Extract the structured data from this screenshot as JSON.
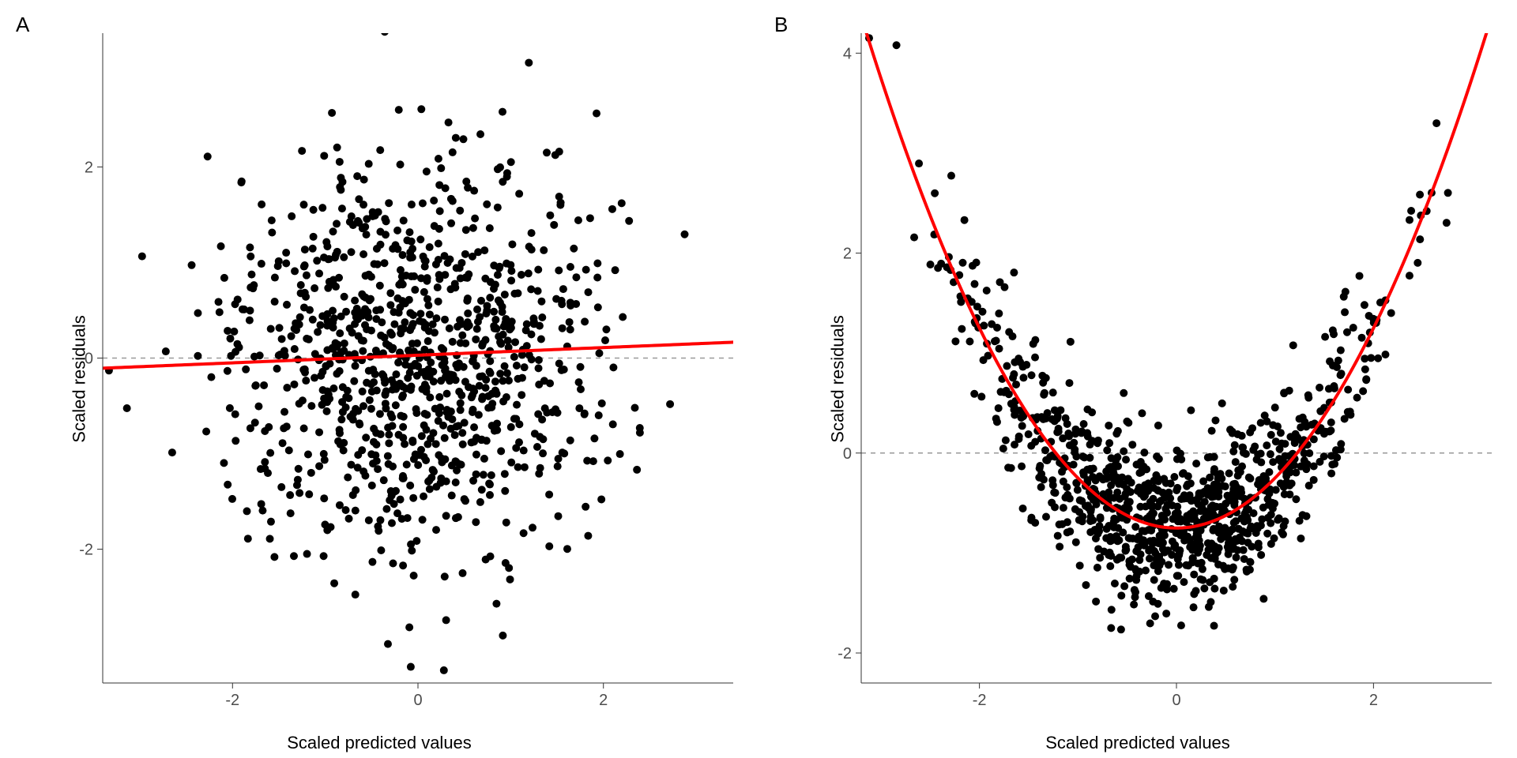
{
  "figure": {
    "background_color": "#ffffff",
    "font_family": "Arial",
    "label_fontsize": 22,
    "tick_fontsize": 20,
    "panel_label_fontsize": 26,
    "panels": [
      {
        "id": "A",
        "label": "A",
        "type": "scatter",
        "xlabel": "Scaled predicted values",
        "ylabel": "Scaled residuals",
        "xlim": [
          -3.4,
          3.4
        ],
        "ylim": [
          -3.4,
          3.4
        ],
        "xticks": [
          -2,
          0,
          2
        ],
        "yticks": [
          -2,
          0,
          2
        ],
        "axis_color": "#333333",
        "tick_color": "#4d4d4d",
        "reference_line": {
          "y": 0,
          "color": "#999999",
          "dash": "6 6",
          "width": 1.5
        },
        "fit": {
          "type": "linear",
          "coefficients": {
            "a": 0.04,
            "b": 0.03
          },
          "color": "#ff0000",
          "width": 4
        },
        "points": {
          "n": 1000,
          "seed": 11,
          "color": "#000000",
          "radius": 5,
          "opacity": 1.0,
          "x_distribution": {
            "type": "normal",
            "mean": 0,
            "sd": 1
          },
          "y_distribution": {
            "type": "normal",
            "mean": 0,
            "sd": 1
          },
          "y_offset_from_fit": false
        }
      },
      {
        "id": "B",
        "label": "B",
        "type": "scatter",
        "xlabel": "Scaled predicted values",
        "ylabel": "Scaled residuals",
        "xlim": [
          -3.2,
          3.2
        ],
        "ylim": [
          -2.3,
          4.2
        ],
        "xticks": [
          -2,
          0,
          2
        ],
        "yticks": [
          -2,
          0,
          2,
          4
        ],
        "axis_color": "#333333",
        "tick_color": "#4d4d4d",
        "reference_line": {
          "y": 0,
          "color": "#999999",
          "dash": "6 6",
          "width": 1.5
        },
        "fit": {
          "type": "quadratic",
          "coefficients": {
            "a": 0.5,
            "b": 0.0,
            "c": -0.75
          },
          "color": "#ff0000",
          "width": 4
        },
        "points": {
          "n": 1000,
          "seed": 29,
          "color": "#000000",
          "radius": 5,
          "opacity": 1.0,
          "x_distribution": {
            "type": "normal",
            "mean": 0,
            "sd": 1
          },
          "noise_distribution": {
            "type": "normal",
            "mean": 0,
            "sd": 0.4
          },
          "y_offset_from_fit": true
        }
      }
    ]
  }
}
